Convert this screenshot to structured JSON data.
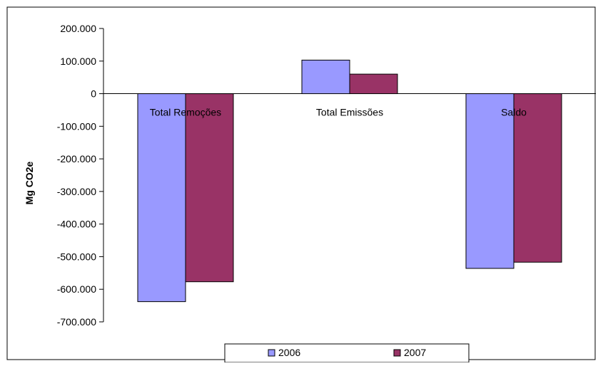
{
  "chart_data": {
    "type": "bar",
    "categories": [
      "Total Remoções",
      "Total Emissões",
      "Saldo"
    ],
    "series": [
      {
        "name": "2006",
        "values": [
          -638000,
          103000,
          -536000
        ],
        "color": "#9999ff"
      },
      {
        "name": "2007",
        "values": [
          -577000,
          60000,
          -517000
        ],
        "color": "#993366"
      }
    ],
    "ylabel": "Mg CO2e",
    "ylim": [
      -700000,
      200000
    ],
    "yticks": [
      200000,
      100000,
      0,
      -100000,
      -200000,
      -300000,
      -400000,
      -500000,
      -600000,
      -700000
    ],
    "ytick_labels": [
      "200.000",
      "100.000",
      "0",
      "-100.000",
      "-200.000",
      "-300.000",
      "-400.000",
      "-500.000",
      "-600.000",
      "-700.000"
    ],
    "grid": false,
    "legend_position": "bottom"
  }
}
